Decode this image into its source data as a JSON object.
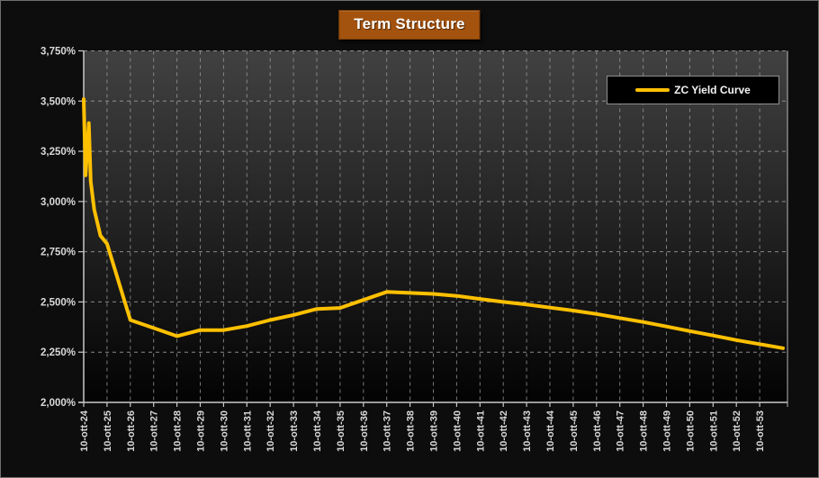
{
  "title": "Term Structure",
  "legend": {
    "label": "ZC Yield Curve",
    "position": "top-right"
  },
  "colors": {
    "background": "#0D0D0D",
    "frame_border": "#6F6F6F",
    "title_bg": "#A4530E",
    "title_border": "#7C3D06",
    "title_text": "#FFFFFF",
    "plot_gradient_top": "#414141",
    "plot_gradient_bottom": "#030303",
    "gridline": "#A0A0A0",
    "axis": "#C9C9C9",
    "tick_label": "#D9D9D9",
    "line": "#FFC000",
    "legend_bg": "#000000",
    "legend_border": "#8F8F8F",
    "legend_text": "#F5F5F5"
  },
  "chart_data": {
    "type": "line",
    "title": "Term Structure",
    "categories": [
      "10-ott-24",
      "10-ott-25",
      "10-ott-26",
      "10-ott-27",
      "10-ott-28",
      "10-ott-29",
      "10-ott-30",
      "10-ott-31",
      "10-ott-32",
      "10-ott-33",
      "10-ott-34",
      "10-ott-35",
      "10-ott-36",
      "10-ott-37",
      "10-ott-38",
      "10-ott-39",
      "10-ott-40",
      "10-ott-41",
      "10-ott-42",
      "10-ott-43",
      "10-ott-44",
      "10-ott-45",
      "10-ott-46",
      "10-ott-47",
      "10-ott-48",
      "10-ott-49",
      "10-ott-50",
      "10-ott-51",
      "10-ott-52",
      "10-ott-53"
    ],
    "x_unit": "years from first category; integer t aligns with categories[t]",
    "series": [
      {
        "name": "ZC Yield Curve",
        "color": "#FFC000",
        "points": [
          [
            0,
            3.51
          ],
          [
            0.08,
            3.13
          ],
          [
            0.22,
            3.39
          ],
          [
            0.3,
            3.1
          ],
          [
            0.45,
            2.96
          ],
          [
            0.72,
            2.83
          ],
          [
            1,
            2.79
          ],
          [
            2,
            2.41
          ],
          [
            3,
            2.37
          ],
          [
            4,
            2.33
          ],
          [
            5,
            2.36
          ],
          [
            6,
            2.36
          ],
          [
            7,
            2.38
          ],
          [
            8,
            2.41
          ],
          [
            9,
            2.435
          ],
          [
            10,
            2.465
          ],
          [
            11,
            2.47
          ],
          [
            12,
            2.51
          ],
          [
            13,
            2.55
          ],
          [
            14,
            2.545
          ],
          [
            15,
            2.54
          ],
          [
            16,
            2.53
          ],
          [
            17,
            2.515
          ],
          [
            18,
            2.5
          ],
          [
            19,
            2.487
          ],
          [
            20,
            2.472
          ],
          [
            21,
            2.457
          ],
          [
            22,
            2.44
          ],
          [
            23,
            2.42
          ],
          [
            24,
            2.4
          ],
          [
            25,
            2.378
          ],
          [
            26,
            2.355
          ],
          [
            27,
            2.333
          ],
          [
            28,
            2.31
          ],
          [
            29,
            2.29
          ],
          [
            30,
            2.27
          ]
        ]
      }
    ],
    "ylim": [
      2.0,
      3.75
    ],
    "ytick_step": 0.25,
    "yticks": [
      {
        "value": 3.75,
        "label": "3,750%"
      },
      {
        "value": 3.5,
        "label": "3,500%"
      },
      {
        "value": 3.25,
        "label": "3,250%"
      },
      {
        "value": 3.0,
        "label": "3,000%"
      },
      {
        "value": 2.75,
        "label": "2,750%"
      },
      {
        "value": 2.5,
        "label": "2,500%"
      },
      {
        "value": 2.25,
        "label": "2,250%"
      },
      {
        "value": 2.0,
        "label": "2,000%"
      }
    ],
    "grid": "dashed",
    "legend_position": "top-right"
  }
}
